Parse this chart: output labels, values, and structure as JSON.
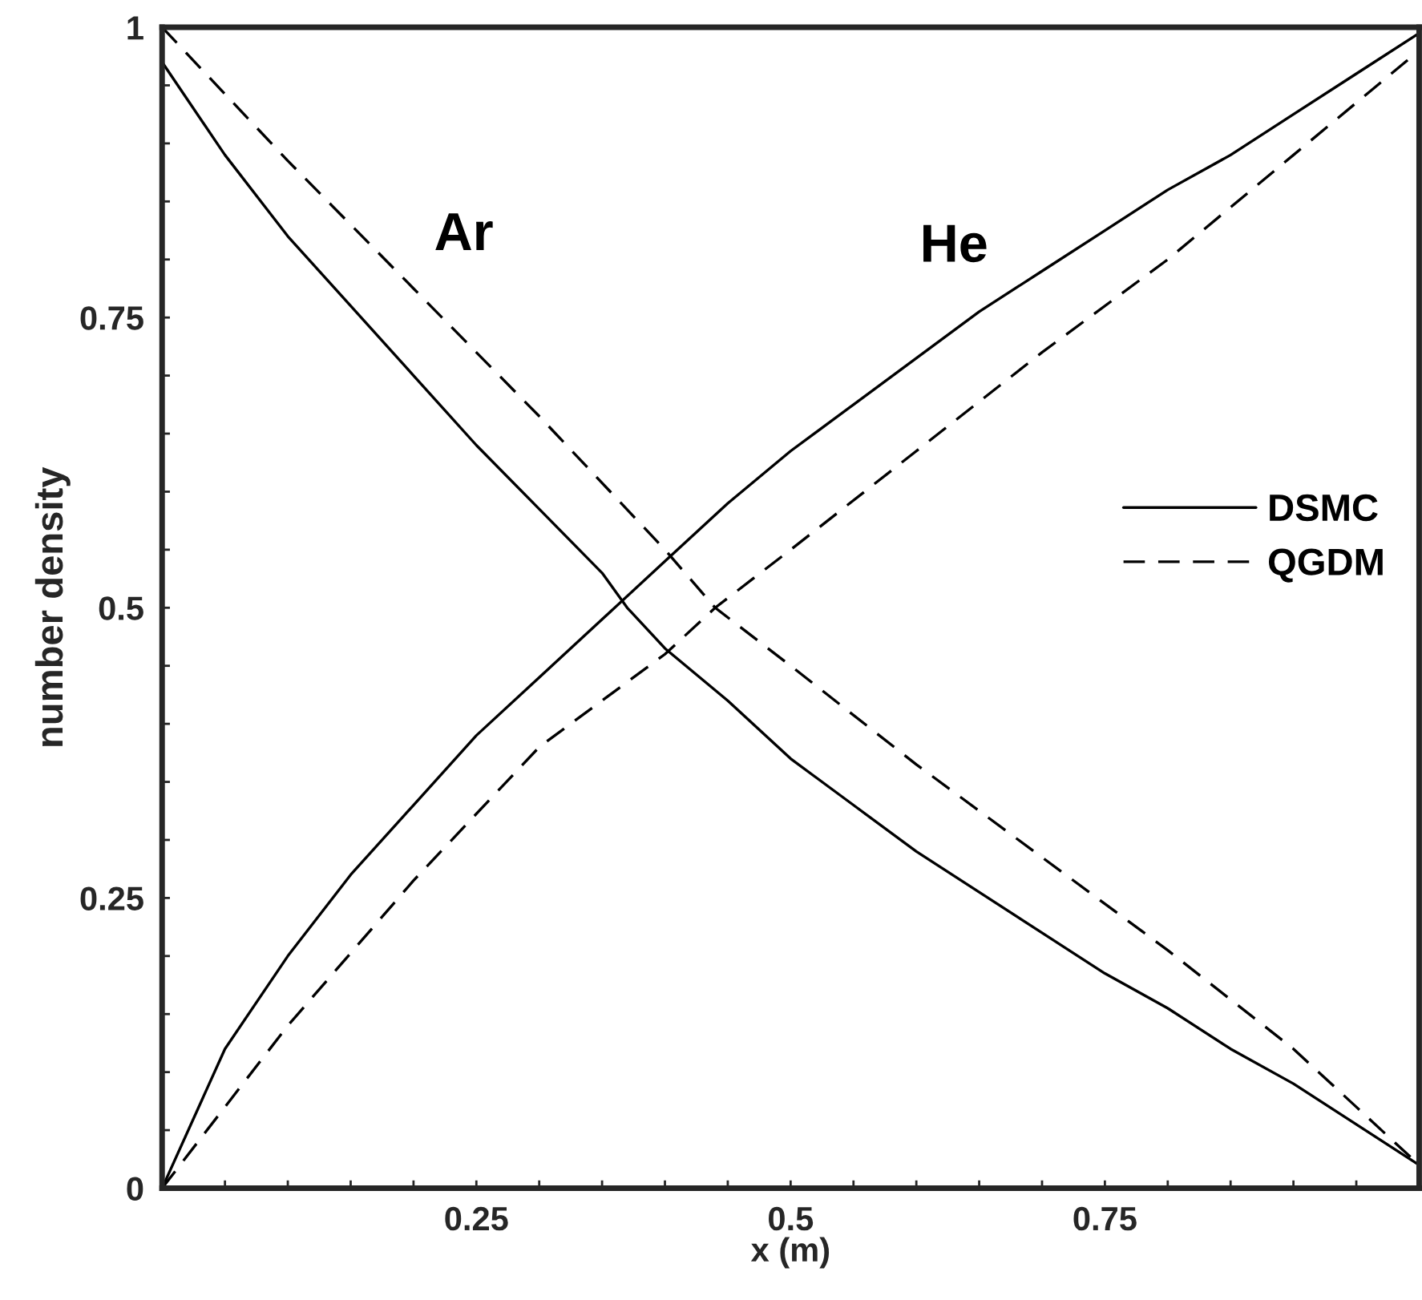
{
  "chart_data": {
    "type": "line",
    "xlabel": "x (m)",
    "ylabel": "number density",
    "xlim": [
      0,
      1
    ],
    "ylim": [
      0,
      1
    ],
    "xticks": [
      {
        "value": 0.05,
        "label": null
      },
      {
        "value": 0.1,
        "label": null
      },
      {
        "value": 0.15,
        "label": null
      },
      {
        "value": 0.2,
        "label": null
      },
      0.25,
      {
        "value": 0.3,
        "label": null
      },
      {
        "value": 0.35,
        "label": null
      },
      {
        "value": 0.4,
        "label": null
      },
      {
        "value": 0.45,
        "label": null
      },
      0.5,
      {
        "value": 0.55,
        "label": null
      },
      {
        "value": 0.6,
        "label": null
      },
      {
        "value": 0.65,
        "label": null
      },
      {
        "value": 0.7,
        "label": null
      },
      0.75,
      {
        "value": 0.8,
        "label": null
      },
      {
        "value": 0.85,
        "label": null
      },
      {
        "value": 0.9,
        "label": null
      },
      {
        "value": 0.95,
        "label": null
      }
    ],
    "yticks": [
      0,
      {
        "value": 0.05,
        "label": null
      },
      {
        "value": 0.1,
        "label": null
      },
      {
        "value": 0.15,
        "label": null
      },
      {
        "value": 0.2,
        "label": null
      },
      0.25,
      {
        "value": 0.3,
        "label": null
      },
      {
        "value": 0.35,
        "label": null
      },
      {
        "value": 0.4,
        "label": null
      },
      {
        "value": 0.45,
        "label": null
      },
      0.5,
      {
        "value": 0.55,
        "label": null
      },
      {
        "value": 0.6,
        "label": null
      },
      {
        "value": 0.65,
        "label": null
      },
      {
        "value": 0.7,
        "label": null
      },
      0.75,
      {
        "value": 0.8,
        "label": null
      },
      {
        "value": 0.85,
        "label": null
      },
      {
        "value": 0.9,
        "label": null
      },
      {
        "value": 0.95,
        "label": null
      },
      1
    ],
    "grid": false,
    "legend": "right",
    "annotations": [
      "Ar",
      "He"
    ],
    "series": [
      {
        "name": "DSMC",
        "color": "#000000",
        "line_style": "solid",
        "x": [
          0,
          0.05,
          0.1,
          0.15,
          0.2,
          0.25,
          0.3,
          0.35,
          0.37,
          0.4,
          0.45,
          0.5,
          0.55,
          0.6,
          0.65,
          0.7,
          0.75,
          0.8,
          0.85,
          0.9,
          0.95,
          1.0
        ],
        "values": [
          0.97,
          0.89,
          0.82,
          0.76,
          0.7,
          0.64,
          0.585,
          0.53,
          0.5,
          0.465,
          0.42,
          0.37,
          0.33,
          0.29,
          0.255,
          0.22,
          0.185,
          0.155,
          0.12,
          0.09,
          0.055,
          0.02
        ]
      },
      {
        "name": "QGDM",
        "color": "#000000",
        "line_style": "dashed",
        "x": [
          0,
          0.1,
          0.2,
          0.3,
          0.4,
          0.44,
          0.5,
          0.6,
          0.7,
          0.8,
          0.9,
          0.95,
          1.0
        ],
        "values": [
          1,
          0.885,
          0.775,
          0.665,
          0.55,
          0.5,
          0.45,
          0.365,
          0.285,
          0.205,
          0.12,
          0.07,
          0.02
        ]
      },
      {
        "color": "#000000",
        "line_style": "solid",
        "x": [
          0,
          0.05,
          0.1,
          0.15,
          0.2,
          0.25,
          0.3,
          0.35,
          0.4,
          0.45,
          0.5,
          0.55,
          0.6,
          0.65,
          0.7,
          0.75,
          0.8,
          0.85,
          0.9,
          0.95,
          1.0
        ],
        "values": [
          0,
          0.12,
          0.2,
          0.27,
          0.33,
          0.39,
          0.44,
          0.49,
          0.54,
          0.59,
          0.635,
          0.675,
          0.715,
          0.755,
          0.79,
          0.825,
          0.86,
          0.89,
          0.925,
          0.96,
          0.995
        ]
      },
      {
        "color": "#000000",
        "line_style": "dashed",
        "x": [
          0,
          0.05,
          0.1,
          0.2,
          0.3,
          0.4,
          0.44,
          0.5,
          0.6,
          0.7,
          0.8,
          0.9,
          1.0
        ],
        "values": [
          0,
          0.07,
          0.14,
          0.265,
          0.38,
          0.46,
          0.5,
          0.55,
          0.635,
          0.72,
          0.8,
          0.89,
          0.98
        ]
      }
    ]
  }
}
